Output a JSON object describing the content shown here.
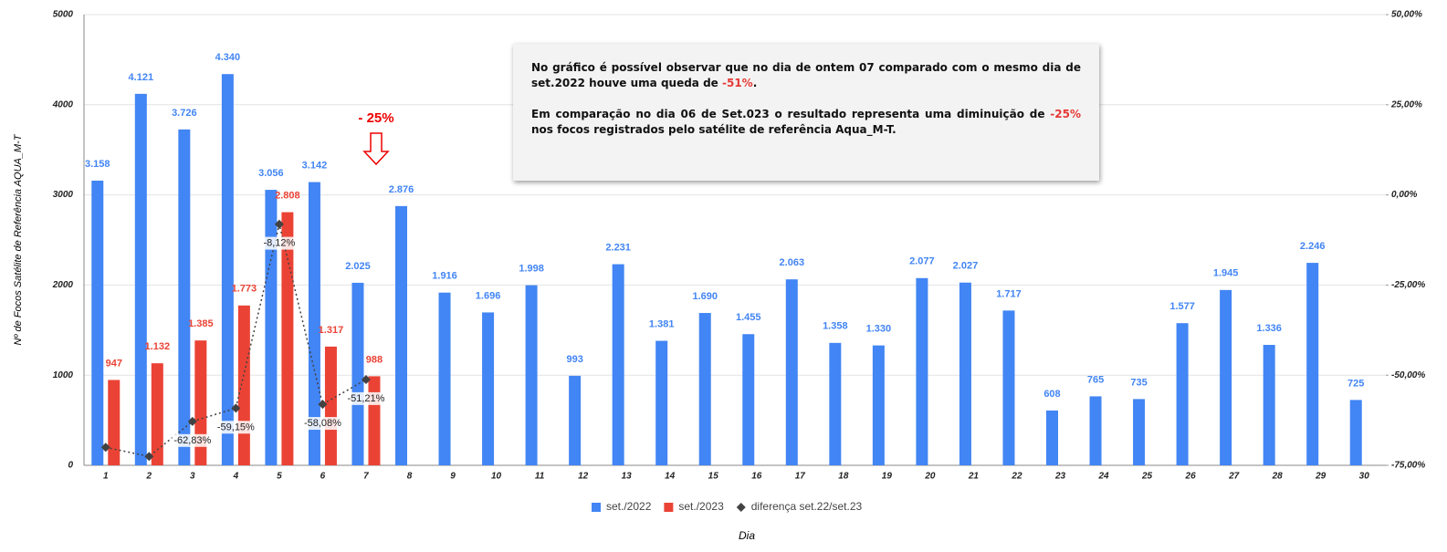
{
  "chart_data": {
    "type": "bar",
    "categories": [
      "1",
      "2",
      "3",
      "4",
      "5",
      "6",
      "7",
      "8",
      "9",
      "10",
      "11",
      "12",
      "13",
      "14",
      "15",
      "16",
      "17",
      "18",
      "19",
      "20",
      "21",
      "22",
      "23",
      "24",
      "25",
      "26",
      "27",
      "28",
      "29",
      "30"
    ],
    "series": [
      {
        "name": "set./2022",
        "color": "#4285f4",
        "type": "bar",
        "values": [
          3158,
          4121,
          3726,
          4340,
          3056,
          3142,
          2025,
          2876,
          1916,
          1696,
          1998,
          993,
          2231,
          1381,
          1690,
          1455,
          2063,
          1358,
          1330,
          2077,
          2027,
          1717,
          608,
          765,
          735,
          1577,
          1945,
          1336,
          2246,
          725
        ],
        "value_labels": [
          "3.158",
          "4.121",
          "3.726",
          "4.340",
          "3.056",
          "3.142",
          "2.025",
          "2.876",
          "1.916",
          "1.696",
          "1.998",
          "993",
          "2.231",
          "1.381",
          "1.690",
          "1.455",
          "2.063",
          "1.358",
          "1.330",
          "2.077",
          "2.027",
          "1.717",
          "608",
          "765",
          "735",
          "1.577",
          "1.945",
          "1.336",
          "2.246",
          "725"
        ]
      },
      {
        "name": "set./2023",
        "color": "#ea4335",
        "type": "bar",
        "values": [
          947,
          1132,
          1385,
          1773,
          2808,
          1317,
          988,
          null,
          null,
          null,
          null,
          null,
          null,
          null,
          null,
          null,
          null,
          null,
          null,
          null,
          null,
          null,
          null,
          null,
          null,
          null,
          null,
          null,
          null,
          null
        ],
        "value_labels": [
          "947",
          "1.132",
          "1.385",
          "1.773",
          "2.808",
          "1.317",
          "988",
          null,
          null,
          null,
          null,
          null,
          null,
          null,
          null,
          null,
          null,
          null,
          null,
          null,
          null,
          null,
          null,
          null,
          null,
          null,
          null,
          null,
          null,
          null
        ]
      },
      {
        "name": "diferença set.22/set.23",
        "color": "#424242",
        "type": "line",
        "axis": "y2",
        "values": [
          -70.01,
          -72.53,
          -62.83,
          -59.15,
          -8.12,
          -58.08,
          -51.21,
          null,
          null,
          null,
          null,
          null,
          null,
          null,
          null,
          null,
          null,
          null,
          null,
          null,
          null,
          null,
          null,
          null,
          null,
          null,
          null,
          null,
          null,
          null
        ],
        "value_labels": [
          null,
          null,
          "-62,83%",
          "-59,15%",
          "-8,12%",
          "-58,08%",
          "-51,21%",
          null,
          null,
          null,
          null,
          null,
          null,
          null,
          null,
          null,
          null,
          null,
          null,
          null,
          null,
          null,
          null,
          null,
          null,
          null,
          null,
          null,
          null,
          null
        ]
      }
    ],
    "ylim": [
      0,
      5000
    ],
    "yticks": [
      0,
      1000,
      2000,
      3000,
      4000,
      5000
    ],
    "y2lim": [
      -75,
      50
    ],
    "y2ticks": [
      {
        "value": -75,
        "label": "-75,00%"
      },
      {
        "value": -50,
        "label": "-50,00%"
      },
      {
        "value": -25,
        "label": "-25,00%"
      },
      {
        "value": 0,
        "label": "0,00%"
      },
      {
        "value": 25,
        "label": "25,00%"
      },
      {
        "value": 50,
        "label": "50,00%"
      }
    ],
    "grid": true,
    "ylabel": "Nº de Focos Satélite de Referência AQUA_M-T",
    "xlabel": "Dia",
    "legend": "bottom",
    "marker_note": "- 25%",
    "annotation": [
      [
        {
          "text": "No gráfico é possível observar que no dia de ontem 07 comparado com o mesmo dia de set.2022  houve uma queda de "
        },
        {
          "text": "-51%",
          "color": "#e53935"
        },
        {
          "text": "."
        }
      ],
      [
        {
          "text": "Em comparação no dia 06 de Set.023 o resultado representa uma diminuição de "
        },
        {
          "text": "-25%",
          "color": "#e53935"
        },
        {
          "text": " nos focos registrados pelo satélite de referência Aqua_M-T."
        }
      ]
    ]
  }
}
